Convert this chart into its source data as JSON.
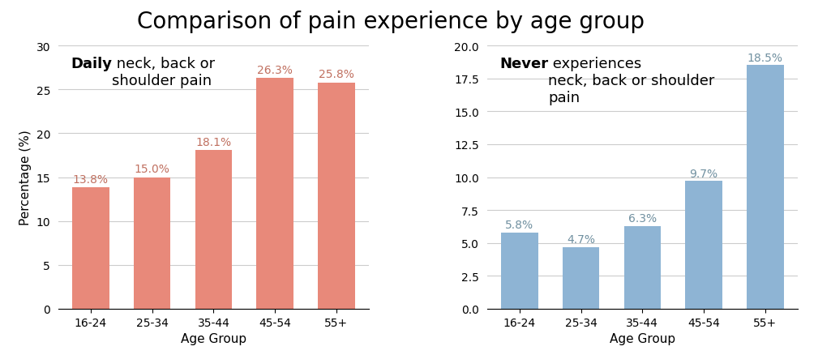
{
  "title": "Comparison of pain experience by age group",
  "title_fontsize": 20,
  "categories": [
    "16-24",
    "25-34",
    "35-44",
    "45-54",
    "55+"
  ],
  "left_values": [
    13.8,
    15.0,
    18.1,
    26.3,
    25.8
  ],
  "left_labels": [
    "13.8%",
    "15.0%",
    "18.1%",
    "26.3%",
    "25.8%"
  ],
  "left_color": "#E8897A",
  "left_ylim": [
    0,
    30
  ],
  "left_yticks": [
    0,
    5,
    10,
    15,
    20,
    25,
    30
  ],
  "left_annotation_bold": "Daily",
  "left_annotation_rest": " neck, back or\nshoulder pain",
  "right_values": [
    5.8,
    4.7,
    6.3,
    9.7,
    18.5
  ],
  "right_labels": [
    "5.8%",
    "4.7%",
    "6.3%",
    "9.7%",
    "18.5%"
  ],
  "right_color": "#8EB4D4",
  "right_ylim": [
    0,
    20
  ],
  "right_yticks": [
    0.0,
    2.5,
    5.0,
    7.5,
    10.0,
    12.5,
    15.0,
    17.5,
    20.0
  ],
  "right_annotation_bold": "Never",
  "right_annotation_rest": " experiences\nneck, back or shoulder\npain",
  "xlabel": "Age Group",
  "ylabel": "Percentage (%)",
  "background_color": "#FFFFFF",
  "grid_color": "#CCCCCC",
  "label_color_left": "#C07060",
  "label_color_right": "#7090A0",
  "annotation_fontsize": 13,
  "bar_label_fontsize": 10
}
